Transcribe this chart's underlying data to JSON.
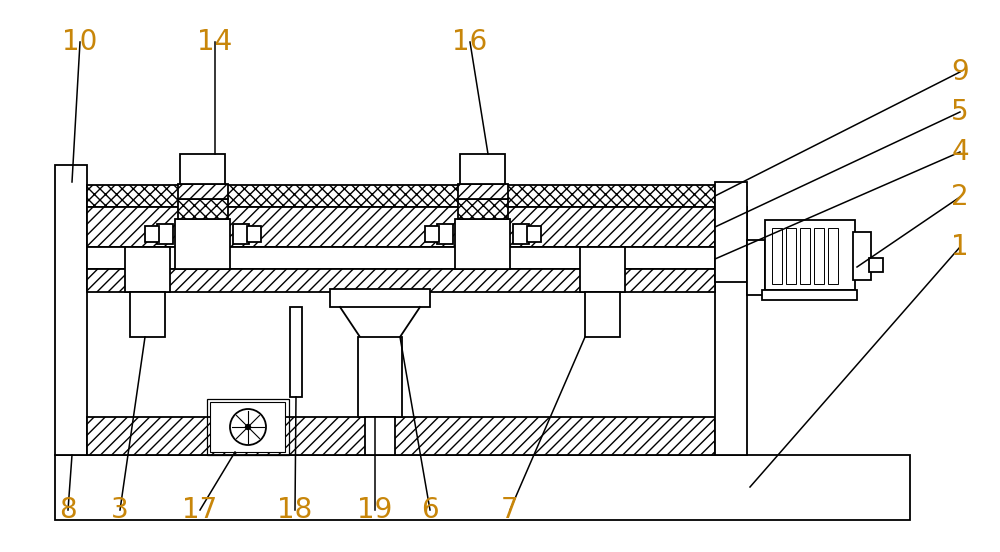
{
  "bg_color": "#ffffff",
  "line_color": "#000000",
  "label_fontsize": 20,
  "label_color": "#c8860a",
  "lw": 1.3
}
